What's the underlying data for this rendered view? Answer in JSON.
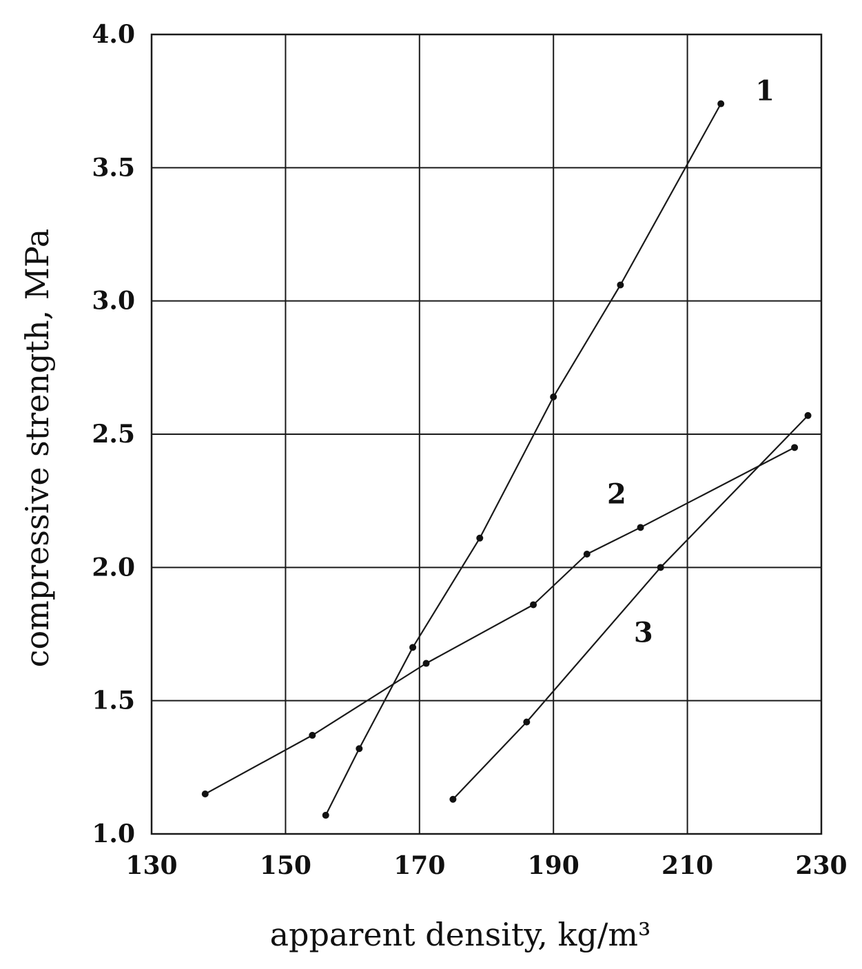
{
  "chart_data": {
    "type": "line",
    "title": "",
    "xlabel": "apparent density, kg/m³",
    "ylabel": "compressive strength, MPa",
    "xlim": [
      130,
      230
    ],
    "ylim": [
      1.0,
      4.0
    ],
    "x_ticks": [
      "130",
      "150",
      "170",
      "190",
      "210",
      "230"
    ],
    "y_ticks": [
      "1.0",
      "1.5",
      "2.0",
      "2.5",
      "3.0",
      "3.5",
      "4.0"
    ],
    "grid": true,
    "legend": "none",
    "series": [
      {
        "label": "1",
        "points": [
          [
            156,
            1.07
          ],
          [
            161,
            1.32
          ],
          [
            169,
            1.7
          ],
          [
            179,
            2.11
          ],
          [
            190,
            2.64
          ],
          [
            200,
            3.06
          ],
          [
            215,
            3.74
          ]
        ]
      },
      {
        "label": "2",
        "points": [
          [
            138,
            1.15
          ],
          [
            154,
            1.37
          ],
          [
            171,
            1.64
          ],
          [
            187,
            1.86
          ],
          [
            195,
            2.05
          ],
          [
            203,
            2.15
          ],
          [
            226,
            2.45
          ]
        ]
      },
      {
        "label": "3",
        "points": [
          [
            175,
            1.13
          ],
          [
            186,
            1.42
          ],
          [
            206,
            2.0
          ],
          [
            228,
            2.57
          ]
        ]
      }
    ]
  }
}
